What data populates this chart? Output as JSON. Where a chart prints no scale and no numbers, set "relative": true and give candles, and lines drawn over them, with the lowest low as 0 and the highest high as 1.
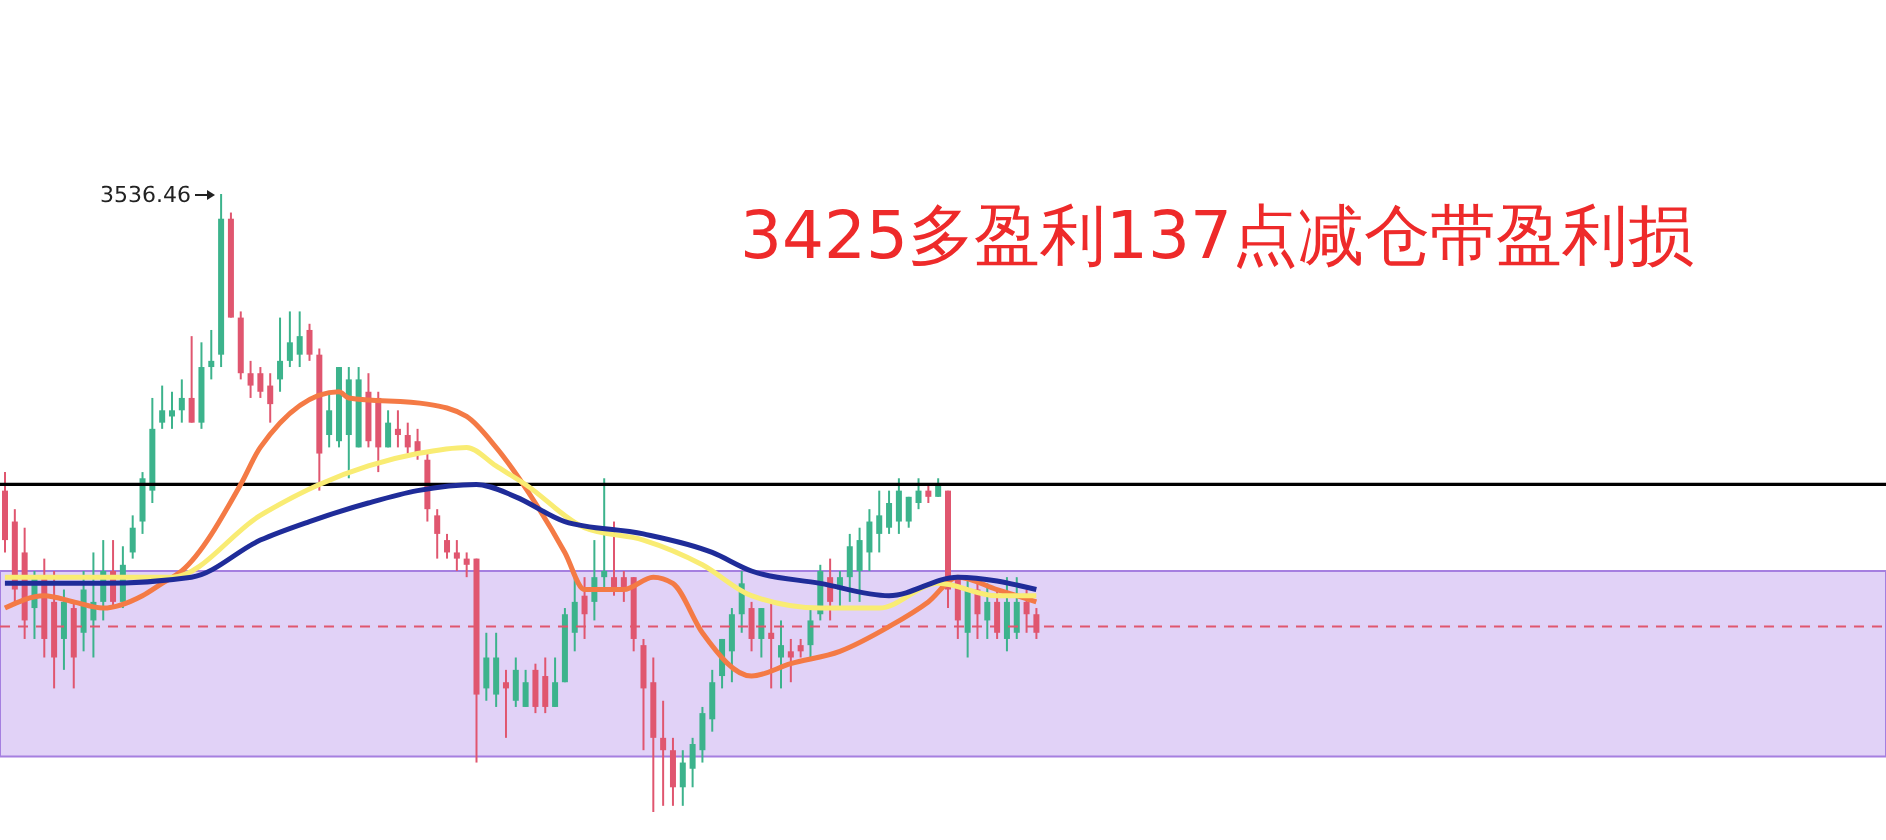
{
  "chart_data": {
    "type": "candlestick",
    "title": "3425多盈利137点减仓带盈利损",
    "relative": true,
    "categories": [
      null,
      null,
      null,
      null,
      null,
      null,
      null,
      null,
      null,
      null,
      null,
      null,
      null,
      null,
      null,
      null,
      null,
      null,
      null,
      null,
      null,
      null,
      null,
      null,
      null,
      null,
      null,
      null,
      null,
      null,
      null,
      null,
      null,
      null,
      null,
      null,
      null,
      null,
      null,
      null,
      null,
      null,
      null,
      null,
      null,
      null,
      null,
      null,
      null,
      null,
      null,
      null,
      null,
      null,
      null,
      null,
      null,
      null,
      null,
      null,
      null,
      null,
      null,
      null,
      null,
      null,
      null,
      null,
      null,
      null,
      null,
      null,
      null,
      null,
      null,
      null,
      null,
      null,
      null,
      null,
      null,
      null,
      null,
      null,
      null,
      null,
      null,
      null,
      null,
      null,
      null,
      null,
      null,
      null,
      null,
      null,
      null,
      null,
      null,
      null,
      null,
      null,
      null,
      null,
      null,
      null
    ],
    "ohlc": [
      [
        0.52,
        0.55,
        0.42,
        0.44
      ],
      [
        0.47,
        0.49,
        0.34,
        0.36
      ],
      [
        0.42,
        0.46,
        0.28,
        0.31
      ],
      [
        0.33,
        0.39,
        0.28,
        0.38
      ],
      [
        0.38,
        0.41,
        0.25,
        0.28
      ],
      [
        0.34,
        0.39,
        0.2,
        0.25
      ],
      [
        0.28,
        0.36,
        0.23,
        0.34
      ],
      [
        0.33,
        0.34,
        0.2,
        0.25
      ],
      [
        0.29,
        0.39,
        0.26,
        0.36
      ],
      [
        0.31,
        0.42,
        0.25,
        0.34
      ],
      [
        0.34,
        0.44,
        0.31,
        0.39
      ],
      [
        0.39,
        0.44,
        0.33,
        0.34
      ],
      [
        0.34,
        0.43,
        0.33,
        0.4
      ],
      [
        0.42,
        0.48,
        0.41,
        0.46
      ],
      [
        0.47,
        0.55,
        0.45,
        0.54
      ],
      [
        0.52,
        0.67,
        0.5,
        0.62
      ],
      [
        0.63,
        0.69,
        0.62,
        0.65
      ],
      [
        0.64,
        0.68,
        0.62,
        0.65
      ],
      [
        0.65,
        0.7,
        0.63,
        0.67
      ],
      [
        0.67,
        0.77,
        0.63,
        0.63
      ],
      [
        0.63,
        0.76,
        0.62,
        0.72
      ],
      [
        0.72,
        0.78,
        0.7,
        0.73
      ],
      [
        0.74,
        1,
        0.72,
        0.96
      ],
      [
        0.96,
        0.97,
        0.8,
        0.8
      ],
      [
        0.8,
        0.81,
        0.7,
        0.71
      ],
      [
        0.71,
        0.73,
        0.67,
        0.69
      ],
      [
        0.71,
        0.72,
        0.67,
        0.68
      ],
      [
        0.69,
        0.71,
        0.63,
        0.66
      ],
      [
        0.7,
        0.8,
        0.68,
        0.73
      ],
      [
        0.73,
        0.81,
        0.72,
        0.76
      ],
      [
        0.74,
        0.81,
        0.72,
        0.77
      ],
      [
        0.78,
        0.79,
        0.73,
        0.74
      ],
      [
        0.74,
        0.75,
        0.52,
        0.58
      ],
      [
        0.61,
        0.68,
        0.59,
        0.65
      ],
      [
        0.6,
        0.72,
        0.59,
        0.72
      ],
      [
        0.61,
        0.72,
        0.54,
        0.7
      ],
      [
        0.59,
        0.72,
        0.59,
        0.7
      ],
      [
        0.68,
        0.71,
        0.59,
        0.6
      ],
      [
        0.67,
        0.68,
        0.55,
        0.59
      ],
      [
        0.59,
        0.65,
        0.59,
        0.63
      ],
      [
        0.62,
        0.65,
        0.59,
        0.61
      ],
      [
        0.61,
        0.63,
        0.58,
        0.59
      ],
      [
        0.6,
        0.62,
        0.57,
        0.58
      ],
      [
        0.57,
        0.58,
        0.47,
        0.49
      ],
      [
        0.48,
        0.49,
        0.41,
        0.45
      ],
      [
        0.44,
        0.45,
        0.41,
        0.42
      ],
      [
        0.42,
        0.44,
        0.39,
        0.41
      ],
      [
        0.41,
        0.42,
        0.38,
        0.4
      ],
      [
        0.41,
        0.41,
        0.08,
        0.19
      ],
      [
        0.2,
        0.29,
        0.18,
        0.25
      ],
      [
        0.19,
        0.29,
        0.17,
        0.25
      ],
      [
        0.21,
        0.23,
        0.12,
        0.2
      ],
      [
        0.18,
        0.25,
        0.17,
        0.23
      ],
      [
        0.17,
        0.23,
        0.17,
        0.21
      ],
      [
        0.23,
        0.24,
        0.16,
        0.17
      ],
      [
        0.22,
        0.25,
        0.16,
        0.17
      ],
      [
        0.17,
        0.25,
        0.17,
        0.21
      ],
      [
        0.21,
        0.33,
        0.21,
        0.32
      ],
      [
        0.29,
        0.38,
        0.26,
        0.34
      ],
      [
        0.35,
        0.38,
        0.28,
        0.32
      ],
      [
        0.34,
        0.44,
        0.31,
        0.38
      ],
      [
        0.38,
        0.54,
        0.36,
        0.39
      ],
      [
        0.38,
        0.47,
        0.35,
        0.36
      ],
      [
        0.38,
        0.39,
        0.34,
        0.36
      ],
      [
        0.38,
        0.38,
        0.26,
        0.28
      ],
      [
        0.27,
        0.28,
        0.1,
        0.2
      ],
      [
        0.21,
        0.25,
        0,
        0.12
      ],
      [
        0.12,
        0.18,
        0.01,
        0.1
      ],
      [
        0.1,
        0.12,
        0.01,
        0.04
      ],
      [
        0.04,
        0.1,
        0.01,
        0.08
      ],
      [
        0.07,
        0.12,
        0.04,
        0.11
      ],
      [
        0.1,
        0.17,
        0.08,
        0.16
      ],
      [
        0.15,
        0.23,
        0.13,
        0.21
      ],
      [
        0.22,
        0.28,
        0.2,
        0.28
      ],
      [
        0.26,
        0.33,
        0.21,
        0.32
      ],
      [
        0.32,
        0.39,
        0.29,
        0.37
      ],
      [
        0.33,
        0.34,
        0.26,
        0.28
      ],
      [
        0.28,
        0.33,
        0.25,
        0.33
      ],
      [
        0.29,
        0.34,
        0.2,
        0.28
      ],
      [
        0.25,
        0.31,
        0.2,
        0.27
      ],
      [
        0.26,
        0.28,
        0.21,
        0.25
      ],
      [
        0.27,
        0.28,
        0.25,
        0.26
      ],
      [
        0.27,
        0.33,
        0.25,
        0.31
      ],
      [
        0.32,
        0.4,
        0.31,
        0.39
      ],
      [
        0.38,
        0.41,
        0.31,
        0.34
      ],
      [
        0.36,
        0.39,
        0.33,
        0.38
      ],
      [
        0.38,
        0.45,
        0.34,
        0.43
      ],
      [
        0.39,
        0.46,
        0.34,
        0.44
      ],
      [
        0.42,
        0.49,
        0.39,
        0.47
      ],
      [
        0.45,
        0.52,
        0.42,
        0.48
      ],
      [
        0.46,
        0.52,
        0.45,
        0.5
      ],
      [
        0.47,
        0.54,
        0.45,
        0.52
      ],
      [
        0.47,
        0.51,
        0.46,
        0.51
      ],
      [
        0.5,
        0.54,
        0.49,
        0.52
      ],
      [
        0.52,
        0.53,
        0.5,
        0.51
      ],
      [
        0.51,
        0.54,
        0.51,
        0.53
      ],
      [
        0.52,
        0.52,
        0.33,
        0.36
      ],
      [
        0.38,
        0.38,
        0.28,
        0.31
      ],
      [
        0.29,
        0.38,
        0.25,
        0.36
      ],
      [
        0.36,
        0.38,
        0.28,
        0.32
      ],
      [
        0.31,
        0.37,
        0.28,
        0.34
      ],
      [
        0.34,
        0.36,
        0.28,
        0.29
      ],
      [
        0.28,
        0.38,
        0.26,
        0.34
      ],
      [
        0.29,
        0.38,
        0.28,
        0.34
      ],
      [
        0.34,
        0.36,
        0.29,
        0.32
      ],
      [
        0.32,
        0.33,
        0.28,
        0.29
      ]
    ],
    "colors": [
      "#e0566f",
      "#e0566f",
      "#e0566f",
      "#3cb38c",
      "#e0566f",
      "#e0566f",
      "#3cb38c",
      "#e0566f",
      "#3cb38c",
      "#3cb38c",
      "#3cb38c",
      "#e0566f",
      "#3cb38c",
      "#3cb38c",
      "#3cb38c",
      "#3cb38c",
      "#3cb38c",
      "#3cb38c",
      "#3cb38c",
      "#e0566f",
      "#3cb38c",
      "#3cb38c",
      "#3cb38c",
      "#e0566f",
      "#e0566f",
      "#e0566f",
      "#e0566f",
      "#e0566f",
      "#3cb38c",
      "#3cb38c",
      "#3cb38c",
      "#e0566f",
      "#e0566f",
      "#3cb38c",
      "#3cb38c",
      "#3cb38c",
      "#3cb38c",
      "#e0566f",
      "#e0566f",
      "#3cb38c",
      "#e0566f",
      "#e0566f",
      "#e0566f",
      "#e0566f",
      "#e0566f",
      "#e0566f",
      "#e0566f",
      "#e0566f",
      "#e0566f",
      "#3cb38c",
      "#3cb38c",
      "#e0566f",
      "#3cb38c",
      "#3cb38c",
      "#e0566f",
      "#e0566f",
      "#3cb38c",
      "#3cb38c",
      "#3cb38c",
      "#e0566f",
      "#3cb38c",
      "#3cb38c",
      "#e0566f",
      "#e0566f",
      "#e0566f",
      "#e0566f",
      "#e0566f",
      "#e0566f",
      "#e0566f",
      "#3cb38c",
      "#3cb38c",
      "#3cb38c",
      "#3cb38c",
      "#3cb38c",
      "#3cb38c",
      "#3cb38c",
      "#e0566f",
      "#3cb38c",
      "#e0566f",
      "#3cb38c",
      "#e0566f",
      "#e0566f",
      "#3cb38c",
      "#3cb38c",
      "#e0566f",
      "#3cb38c",
      "#3cb38c",
      "#3cb38c",
      "#3cb38c",
      "#3cb38c",
      "#3cb38c",
      "#3cb38c",
      "#3cb38c",
      "#3cb38c",
      "#e0566f",
      "#3cb38c",
      "#e0566f",
      "#e0566f",
      "#3cb38c",
      "#e0566f",
      "#3cb38c",
      "#e0566f",
      "#3cb38c",
      "#3cb38c",
      "#e0566f",
      "#e0566f"
    ],
    "series": [
      {
        "type": "line",
        "color": "#f47a45",
        "values": [
          0.33,
          null,
          null,
          null,
          0.35,
          null,
          null,
          0.34,
          null,
          null,
          0.33,
          null,
          null,
          null,
          0.35,
          null,
          0.37,
          null,
          0.39,
          null,
          null,
          null,
          null,
          null,
          0.53,
          null,
          0.59,
          null,
          null,
          null,
          null,
          null,
          null,
          null,
          0.68,
          0.67,
          null,
          null,
          null,
          null,
          null,
          null,
          null,
          0.66,
          null,
          null,
          null,
          0.64,
          null,
          null,
          0.59,
          null,
          null,
          null,
          0.5,
          null,
          null,
          0.42,
          null,
          0.36,
          null,
          null,
          null,
          0.36,
          null,
          null,
          0.38,
          null,
          0.37,
          null,
          null,
          0.29,
          null,
          null,
          null,
          null,
          0.22,
          null,
          null,
          null,
          0.24,
          null,
          null,
          null,
          null,
          0.26,
          null,
          null,
          null,
          null,
          0.3,
          null,
          null,
          null,
          0.34,
          null,
          null,
          0.38,
          null,
          null,
          null,
          0.36,
          null,
          null,
          null,
          0.34
        ]
      },
      {
        "type": "line",
        "color": "#f9ec73",
        "values": [
          0.38,
          null,
          null,
          null,
          null,
          null,
          null,
          null,
          null,
          null,
          0.38,
          null,
          null,
          null,
          null,
          null,
          null,
          0.38,
          null,
          null,
          null,
          null,
          null,
          null,
          null,
          null,
          0.48,
          null,
          null,
          null,
          null,
          null,
          0.53,
          null,
          null,
          null,
          null,
          0.56,
          null,
          null,
          null,
          null,
          0.58,
          null,
          null,
          null,
          null,
          0.59,
          null,
          null,
          0.56,
          null,
          null,
          0.53,
          null,
          null,
          null,
          null,
          null,
          0.46,
          null,
          null,
          null,
          null,
          null,
          0.44,
          null,
          null,
          null,
          null,
          null,
          0.4,
          null,
          null,
          null,
          null,
          0.35,
          null,
          null,
          null,
          null,
          null,
          null,
          0.33,
          null,
          null,
          null,
          null,
          null,
          0.33,
          null,
          null,
          null,
          null,
          null,
          0.37,
          null,
          null,
          null,
          null,
          null,
          0.35,
          null,
          null,
          null,
          0.35
        ]
      },
      {
        "type": "line",
        "color": "#1f2c99",
        "values": [
          0.37,
          null,
          null,
          null,
          null,
          null,
          null,
          null,
          null,
          null,
          0.37,
          null,
          null,
          null,
          null,
          null,
          null,
          null,
          null,
          0.38,
          null,
          null,
          null,
          null,
          null,
          null,
          0.44,
          null,
          null,
          null,
          null,
          0.47,
          null,
          null,
          null,
          null,
          null,
          0.5,
          null,
          null,
          null,
          null,
          0.52,
          null,
          null,
          null,
          null,
          null,
          0.53,
          null,
          null,
          null,
          0.51,
          null,
          null,
          null,
          null,
          0.47,
          null,
          null,
          null,
          null,
          null,
          null,
          null,
          0.45,
          null,
          null,
          null,
          null,
          null,
          null,
          0.42,
          null,
          null,
          null,
          0.39,
          null,
          null,
          null,
          null,
          null,
          null,
          0.37,
          null,
          null,
          null,
          null,
          null,
          null,
          0.35,
          null,
          null,
          null,
          null,
          null,
          null,
          0.38,
          null,
          null,
          null,
          null,
          null,
          null,
          null,
          0.36
        ]
      }
    ],
    "ref_lines": [
      {
        "axis": "y",
        "value": 0.53,
        "color": "#000000",
        "line_style": "solid"
      },
      {
        "axis": "y",
        "value": 0.3,
        "color": "#e0566f",
        "line_style": "dashed"
      }
    ],
    "bands": [
      {
        "axis": "y",
        "from": 0.09,
        "to": 0.39,
        "color": "#dccaf6"
      }
    ],
    "annotations": [
      "3536.46"
    ]
  }
}
